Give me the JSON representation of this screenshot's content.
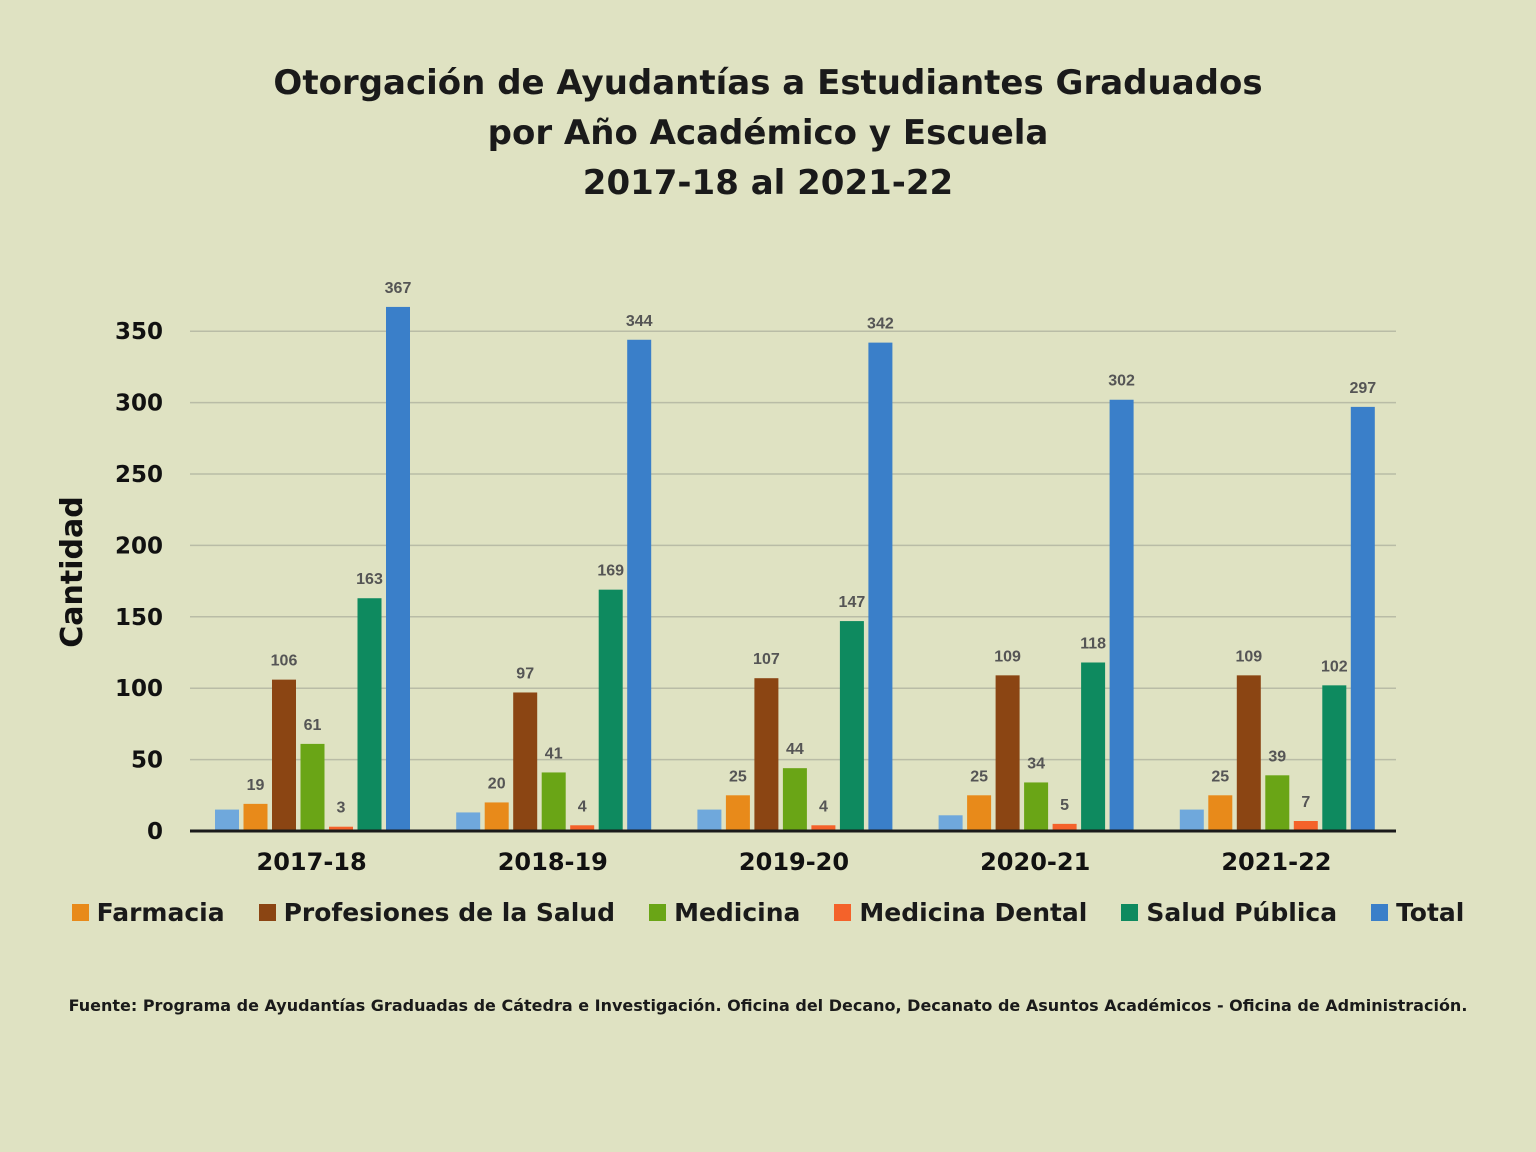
{
  "chart_data": {
    "type": "bar",
    "title_lines": [
      "Otorgación de Ayudantías a Estudiantes Graduados",
      "por Año Académico y Escuela",
      "2017-18 al 2021-22"
    ],
    "ylabel": "Cantidad",
    "xlabel": "",
    "ylim": [
      0,
      350
    ],
    "yticks": [
      "0",
      "50",
      "100",
      "150",
      "200",
      "250",
      "300",
      "350"
    ],
    "categories": [
      "2017-18",
      "2018-19",
      "2019-20",
      "2020-21",
      "2021-22"
    ],
    "grid": true,
    "legend_position": "bottom",
    "unlabeled_series": {
      "color": "#6fa8dc",
      "values": [
        15,
        13,
        15,
        11,
        15
      ]
    },
    "series": [
      {
        "name": "Farmacia",
        "color": "#e88a1a",
        "values": [
          19,
          20,
          25,
          25,
          25
        ],
        "labels": [
          "19",
          "20",
          "25",
          "25",
          "25"
        ]
      },
      {
        "name": "Profesiones de la Salud",
        "color": "#8b4513",
        "values": [
          106,
          97,
          107,
          109,
          109
        ],
        "labels": [
          "106",
          "97",
          "107",
          "109",
          "109"
        ]
      },
      {
        "name": "Medicina",
        "color": "#6aa516",
        "values": [
          61,
          41,
          44,
          34,
          39
        ],
        "labels": [
          "61",
          "41",
          "44",
          "34",
          "39"
        ]
      },
      {
        "name": "Medicina Dental",
        "color": "#f4622a",
        "values": [
          3,
          4,
          4,
          5,
          7
        ],
        "labels": [
          "3",
          "4",
          "4",
          "5",
          "7"
        ]
      },
      {
        "name": "Salud Pública",
        "color": "#0e8a5f",
        "values": [
          163,
          169,
          147,
          118,
          102
        ],
        "labels": [
          "163",
          "169",
          "147",
          "118",
          "102"
        ]
      },
      {
        "name": "Total",
        "color": "#3a7fc9",
        "values": [
          367,
          344,
          342,
          302,
          297
        ],
        "labels": [
          "367",
          "344",
          "342",
          "302",
          "297"
        ]
      }
    ]
  },
  "source_note": "Fuente: Programa de Ayudantías Graduadas de Cátedra e Investigación. Oficina del Decano, Decanato de Asuntos Académicos - Oficina de Administración."
}
